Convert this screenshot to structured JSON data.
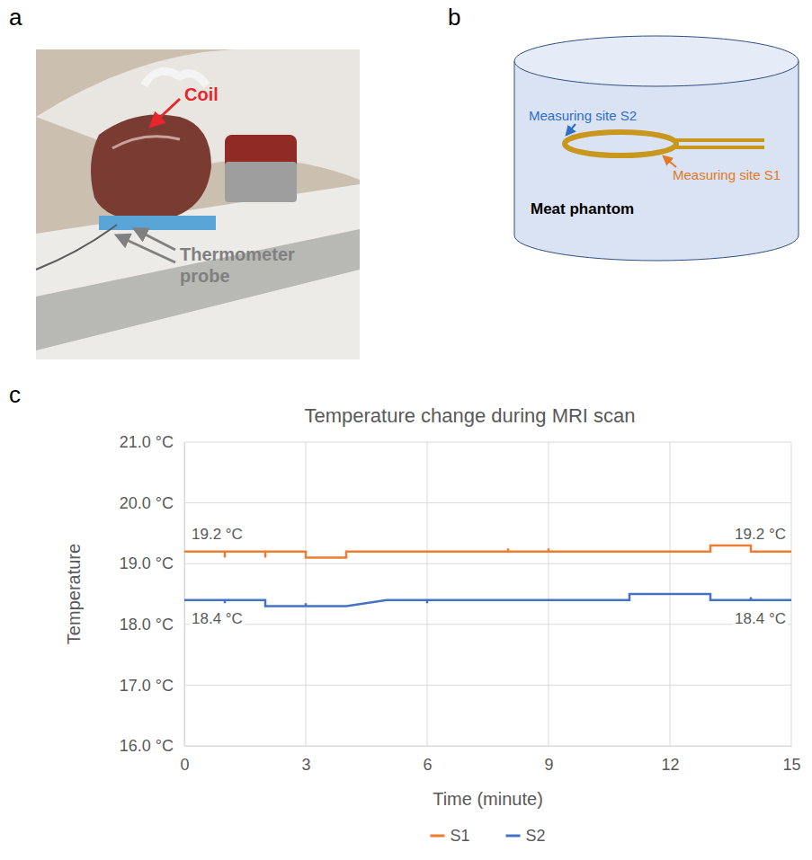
{
  "figure": {
    "panel_a": {
      "letter": "a",
      "labels": {
        "coil": "Coil",
        "probe": "Thermometer probe"
      }
    },
    "panel_b": {
      "letter": "b",
      "labels": {
        "s2": "Measuring site S2",
        "s1": "Measuring site S1",
        "phantom": "Meat phantom"
      }
    },
    "panel_c": {
      "letter": "c"
    }
  },
  "chart_data": {
    "type": "line",
    "title": "Temperature change during MRI scan",
    "x_label": "Time (minute)",
    "y_label": "Temperature",
    "xlim": [
      0,
      15
    ],
    "xticks": [
      0,
      3,
      6,
      9,
      12,
      15
    ],
    "ylim": [
      16,
      21
    ],
    "yticks": [
      {
        "value": 16,
        "label": "16.0 °C"
      },
      {
        "value": 17,
        "label": "17.0 °C"
      },
      {
        "value": 18,
        "label": "18.0 °C"
      },
      {
        "value": 19,
        "label": "19.0 °C"
      },
      {
        "value": 20,
        "label": "20.0 °C"
      },
      {
        "value": 21,
        "label": "21.0 °C"
      }
    ],
    "grid": true,
    "legend": "bottom",
    "series": [
      {
        "name": "S1",
        "color": "#ed7d31",
        "x": [
          0,
          1,
          1,
          1,
          2,
          2,
          2,
          3,
          3,
          4,
          4,
          8,
          8,
          8,
          9,
          9,
          9,
          13,
          13,
          14,
          14,
          15
        ],
        "values": [
          19.2,
          19.2,
          19.1,
          19.2,
          19.2,
          19.1,
          19.2,
          19.2,
          19.1,
          19.1,
          19.2,
          19.2,
          19.25,
          19.2,
          19.2,
          19.25,
          19.2,
          19.2,
          19.3,
          19.3,
          19.2,
          19.2
        ]
      },
      {
        "name": "S2",
        "color": "#4472c4",
        "x": [
          0,
          1,
          1,
          1,
          2,
          2,
          3,
          3,
          3,
          4,
          5,
          6,
          6,
          6,
          11,
          11,
          13,
          13,
          14,
          14,
          14,
          15
        ],
        "values": [
          18.4,
          18.4,
          18.35,
          18.4,
          18.4,
          18.3,
          18.3,
          18.35,
          18.3,
          18.3,
          18.4,
          18.4,
          18.35,
          18.4,
          18.4,
          18.5,
          18.5,
          18.4,
          18.4,
          18.45,
          18.4,
          18.4
        ]
      }
    ],
    "annotations": [
      {
        "text": "19.2 °C",
        "x": 0,
        "y": 19.2
      },
      {
        "text": "19.2 °C",
        "x": 15,
        "y": 19.2
      },
      {
        "text": "18.4 °C",
        "x": 0,
        "y": 18.4
      },
      {
        "text": "18.4 °C",
        "x": 15,
        "y": 18.4
      }
    ]
  }
}
